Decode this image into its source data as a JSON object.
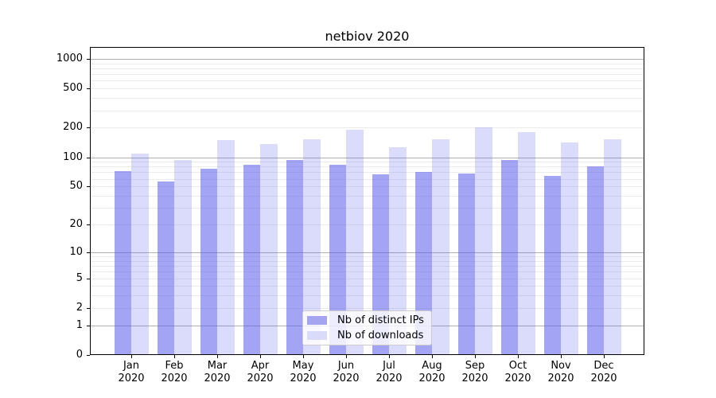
{
  "title": "netbiov 2020",
  "legend": {
    "items": [
      {
        "label": "Nb of distinct IPs",
        "swatch": "#a4a4f1"
      },
      {
        "label": "Nb of downloads",
        "swatch": "#dadaf9"
      }
    ]
  },
  "axes": {
    "ytick_labels": [
      "1000",
      "500",
      "200",
      "100",
      "50",
      "20",
      "10",
      "5",
      "2",
      "1",
      "0"
    ],
    "xtick_labels": [
      "Jan 2020",
      "Feb 2020",
      "Mar 2020",
      "Apr 2020",
      "May 2020",
      "Jun 2020",
      "Jul 2020",
      "Aug 2020",
      "Sep 2020",
      "Oct 2020",
      "Nov 2020",
      "Dec 2020"
    ]
  },
  "colors": {
    "bar_distinct_ips": "rgba(90,90,235,0.55)",
    "bar_downloads": "rgba(90,90,235,0.22)",
    "grid_major": "#b0b0b0",
    "grid_minor": "#ebebeb",
    "axis": "#000000",
    "legend_border": "#cccccc"
  },
  "chart_data": {
    "type": "bar",
    "title": "netbiov 2020",
    "categories": [
      "Jan 2020",
      "Feb 2020",
      "Mar 2020",
      "Apr 2020",
      "May 2020",
      "Jun 2020",
      "Jul 2020",
      "Aug 2020",
      "Sep 2020",
      "Oct 2020",
      "Nov 2020",
      "Dec 2020"
    ],
    "series": [
      {
        "name": "Nb of distinct IPs",
        "values": [
          72,
          56,
          76,
          83,
          94,
          84,
          67,
          70,
          68,
          93,
          64,
          81
        ]
      },
      {
        "name": "Nb of downloads",
        "values": [
          108,
          94,
          150,
          135,
          152,
          190,
          126,
          152,
          202,
          180,
          141,
          152
        ]
      }
    ],
    "xlabel": "",
    "ylabel": "",
    "yscale": "log1p",
    "ylim": [
      0,
      1320
    ],
    "yticks": [
      0,
      1,
      2,
      5,
      10,
      20,
      50,
      100,
      200,
      500,
      1000
    ],
    "grid": "horizontal, major dark at powers of 10, minor light",
    "legend_position": "lower center"
  }
}
